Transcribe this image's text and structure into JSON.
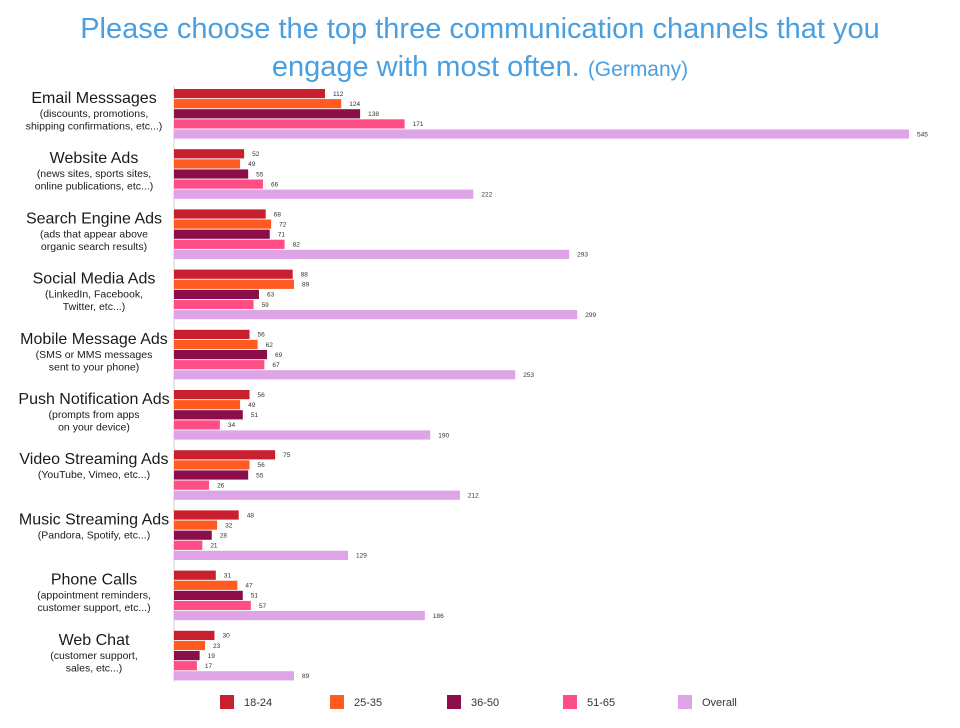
{
  "title": {
    "line1": "Please choose the top three communication channels that you",
    "line2": "engage with most often.",
    "country": "(Germany)"
  },
  "chart_data": {
    "type": "bar",
    "orientation": "horizontal",
    "categories": [
      {
        "name": "Email Messsages",
        "desc": [
          "(discounts, promotions,",
          "shipping confirmations, etc...)"
        ]
      },
      {
        "name": "Website Ads",
        "desc": [
          "(news sites, sports sites,",
          "online publications, etc...)"
        ]
      },
      {
        "name": "Search Engine Ads",
        "desc": [
          "(ads that appear above",
          "organic search results)"
        ]
      },
      {
        "name": "Social Media Ads",
        "desc": [
          "(LinkedIn, Facebook,",
          "Twitter, etc...)"
        ]
      },
      {
        "name": "Mobile Message Ads",
        "desc": [
          "(SMS or MMS messages",
          "sent to your phone)"
        ]
      },
      {
        "name": "Push Notification Ads",
        "desc": [
          "(prompts from apps",
          "on your device)"
        ]
      },
      {
        "name": "Video Streaming Ads",
        "desc": [
          "(YouTube, Vimeo, etc...)"
        ]
      },
      {
        "name": "Music Streaming Ads",
        "desc": [
          "(Pandora, Spotify, etc...)"
        ]
      },
      {
        "name": "Phone Calls",
        "desc": [
          "(appointment reminders,",
          "customer support, etc...)"
        ]
      },
      {
        "name": "Web Chat",
        "desc": [
          "(customer support,",
          "sales, etc...)"
        ]
      }
    ],
    "series": [
      {
        "name": "18-24",
        "color": "#c8202e",
        "values": [
          112,
          52,
          68,
          88,
          56,
          56,
          75,
          48,
          31,
          30
        ]
      },
      {
        "name": "25-35",
        "color": "#ff5a1f",
        "values": [
          124,
          49,
          72,
          89,
          62,
          49,
          56,
          32,
          47,
          23
        ]
      },
      {
        "name": "36-50",
        "color": "#8b0e4a",
        "values": [
          138,
          55,
          71,
          63,
          69,
          51,
          55,
          28,
          51,
          19
        ]
      },
      {
        "name": "51-65",
        "color": "#ff4d86",
        "values": [
          171,
          66,
          82,
          59,
          67,
          34,
          26,
          21,
          57,
          17
        ]
      },
      {
        "name": "Overall",
        "color": "#dda4e6",
        "values": [
          545,
          222,
          293,
          299,
          253,
          190,
          212,
          129,
          186,
          89
        ]
      }
    ],
    "xlim": [
      0,
      545
    ],
    "grid": false,
    "legend_position": "bottom"
  }
}
